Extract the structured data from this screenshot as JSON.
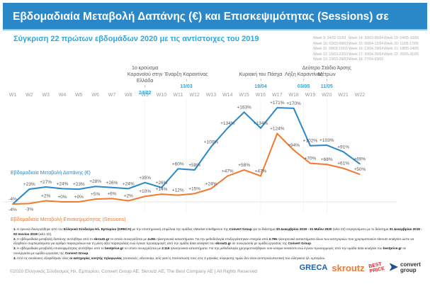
{
  "header": {
    "title": "Εβδομαδιαία Μεταβολή Δαπάνης (€) και Επισκεψιμότητας (Sessions) σε Ελληνικά e-shops",
    "subtitle": "Σύγκριση 22 πρώτων εβδομάδων 2020 με τις αντίστοιχες του 2019"
  },
  "week_legend": [
    "Week 9: 24/02-01/03",
    "Week 10: 02/03-08/03",
    "Week 11: 09/03-15/03",
    "Week 12: 16/03-22/03",
    "Week 13: 23/03-29/03",
    "Week 14: 30/03-05/04",
    "Week 15: 06/04-12/04",
    "Week 16: 13/04-19/04",
    "Week 17: 20/04-26/04",
    "Week 18: 27/04-03/05",
    "Week 19: 04/05-10/05",
    "Week 20: 11/05-17/05",
    "Week 21: 18/05-24/05",
    "Week 22: 25/05-31/05",
    ""
  ],
  "annotations": [
    {
      "text": "1ο κρούσμα Κορονοϊού στην Ελλάδα",
      "date": "24/02",
      "week": "W9"
    },
    {
      "text": "Έναρξη Καραντίνας",
      "date": "13/03",
      "week": "W11.5"
    },
    {
      "text": "Κυριακή του Πάσχα",
      "date": "19/04",
      "week": "W16"
    },
    {
      "text": "Λήξη Καραντίνας",
      "date": "03/05",
      "week": "W18.6"
    },
    {
      "text": "Δεύτερο Στάδιο Άρσης Μέτρων",
      "date": "11/05",
      "week": "W20"
    }
  ],
  "chart_data": {
    "type": "line",
    "categories": [
      "W1",
      "W2",
      "W3",
      "W4",
      "W5",
      "W6",
      "W7",
      "W8",
      "W9",
      "W10",
      "W11",
      "W12",
      "W13",
      "W14",
      "W15",
      "W16",
      "W17",
      "W18",
      "W19",
      "W20",
      "W21",
      "W22"
    ],
    "series": [
      {
        "name": "Εβδομαδιαία Μεταβολή Δαπάνης (€)",
        "color": "#2a88c8",
        "values": [
          -4,
          23,
          27,
          24,
          23,
          28,
          26,
          24,
          35,
          26,
          60,
          58,
          100,
          134,
          163,
          134,
          171,
          170,
          102,
          103,
          91,
          69
        ]
      },
      {
        "name": "Εβδομαδιαία Μεταβολή Επισκεψιμότητας (Sessions)",
        "color": "#f07a30",
        "values": [
          -4,
          -3,
          2,
          0,
          0,
          5,
          6,
          2,
          10,
          14,
          12,
          15,
          24,
          47,
          58,
          47,
          124,
          94,
          70,
          68,
          61,
          50
        ]
      }
    ],
    "value_format": "percent with sign",
    "grid": false
  },
  "notes": [
    {
      "n": "1.",
      "html": "Η έρευνα διενεργήθηκε από τον <b>Ελληνικό Σύνδεσμο Ηλ. Εμπορίου (GRECA)</b> με την επιστημονική επιμέλεια της ομάδας eMarket Intelligence της <b>Convert Group</b> για το διάστημα <b>30 Δεκεμβρίου 2019 - 31 Μαΐου 2020</b> (wk1-22) συγκρινόμενο με το διάστημα <b>31 Δεκεμβρίου 2018 - 02 Ιουνίου 2019</b> (wk1-22)."
    },
    {
      "n": "2.",
      "html": "Η εβδομαδιαία μεταβολή δαπάνης αντλήθηκε από το <b>skroutz.gr</b> το οποίο συνεργάζεται με <b>4.451</b> ηλεκτρονικά καταστήματα. Για την μεθοδολογία επεξεργάστηκαν στοιχεία από <b>2.796</b> ηλεκτρονικά καταστήματα όλων των κατηγοριών που χρησιμοποιούν skroutz analytics ώστε να εξαχθούν συμπεράσματα για αριθμό παραγγελιών και τη μέση αξία παραγγελίας ενώ έγιναν προσαρμογές από την ομάδα data analysis του <b>skroutz.gr</b> σε συνεργασία με ομάδα εργασίας της <b>Convert Group</b>."
    },
    {
      "n": "3.",
      "html": "Η εβδομαδιαία μεταβολή επισκεψιμότητας αντλήθηκε από το <b>bestprice.gr</b> το οποίο συνεργάζεται με <b>2.116</b> ηλεκτρονικά καταστήματα. Για την μεθοδολογία χρησιμοποιήθηκαν non-unique sessions ενώ έγιναν προσαρμογές από την ομάδα data analysis του <b>bestprice.gr</b> σε συνεργασία με ομάδα εργασίας της <b>Convert Group</b>."
    },
    {
      "n": "4.",
      "html": "Από τις αναλύσεις εξαιρέθηκαν όλες <b>οι κατηγορίες κινητής τηλεφωνίας</b> (συσκευές, αξεσουάρ, κτλ) γιατί η ποσοστωσή τους στις 2 μηνιαίες σύγκρισης τιμών δεν είναι αντιπροσωπευτική του ελληνικού ηλ. εμπορίου."
    }
  ],
  "footer": "©2020 Ελληνικός Σύνδεσμος Ηλ. Εμπορίου, Convert Group AE, Skroutz AE, The Best Company AE | All Rights Reserved",
  "logos": {
    "greca": "GRECA",
    "skroutz": "skroutz",
    "bestprice": "BEST PRICE",
    "convert": "convert group"
  }
}
